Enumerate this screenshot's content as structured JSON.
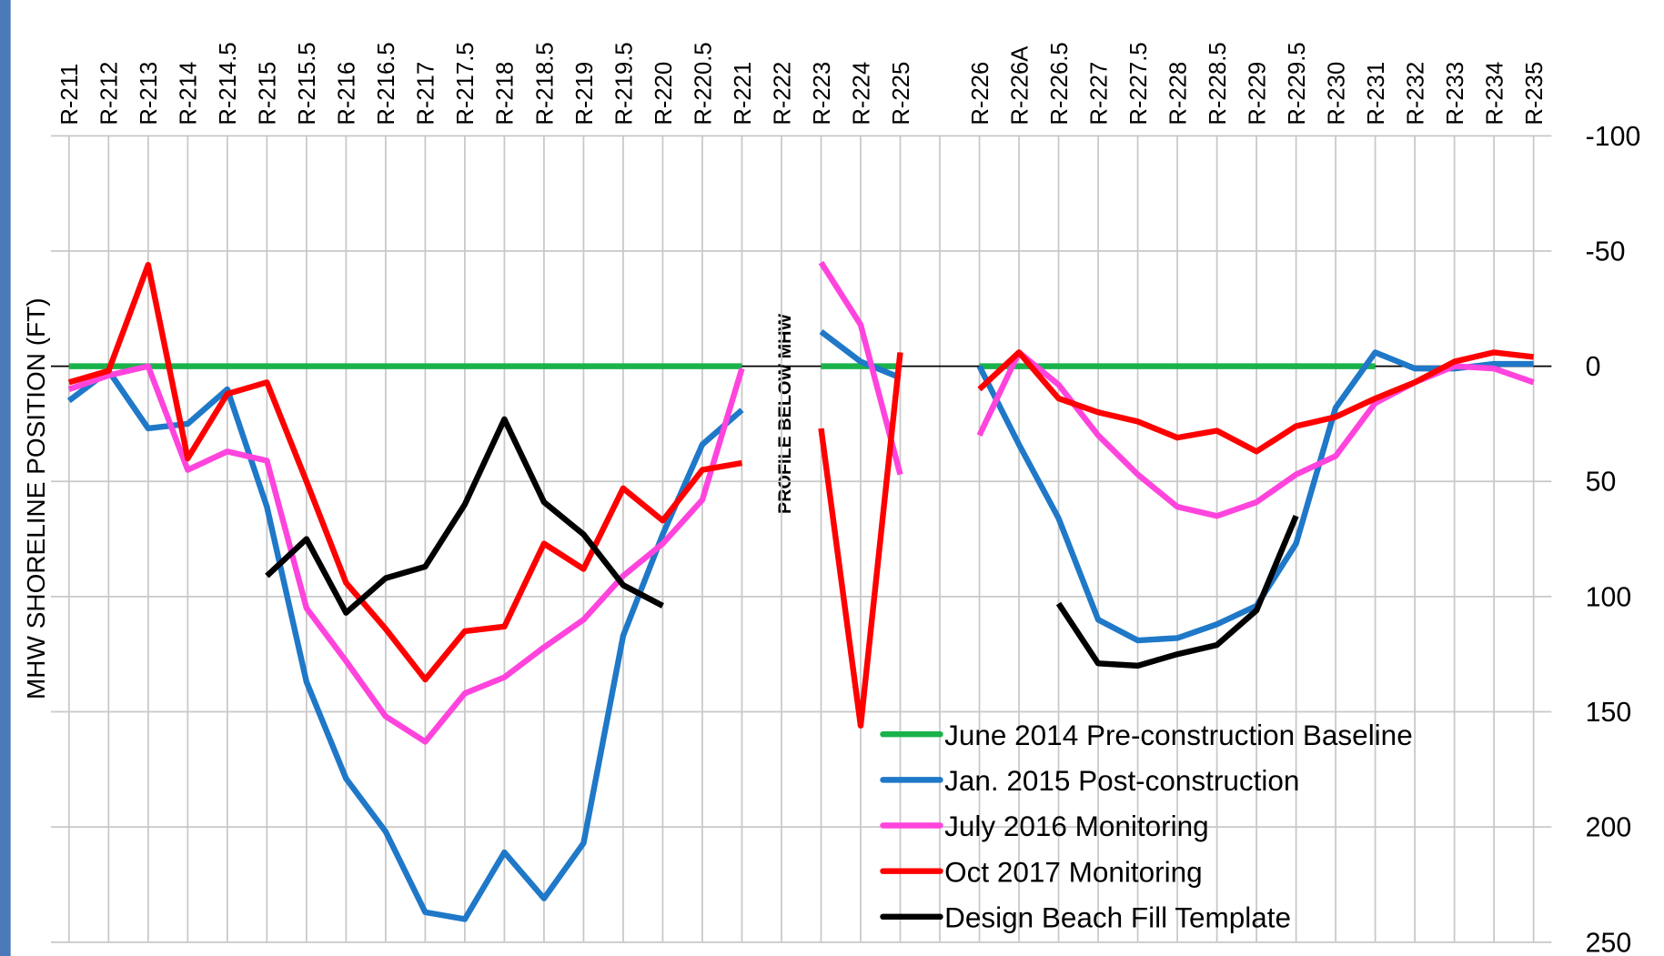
{
  "chart_data": {
    "type": "line",
    "y_label": "MHW SHORELINE POSITION (FT)",
    "annotation": "PROFILE BELOW MHW",
    "categories": [
      "R-211",
      "R-212",
      "R-213",
      "R-214",
      "R-214.5",
      "R-215",
      "R-215.5",
      "R-216",
      "R-216.5",
      "R-217",
      "R-217.5",
      "R-218",
      "R-218.5",
      "R-219",
      "R-219.5",
      "R-220",
      "R-220.5",
      "R-221",
      "R-222",
      "R-223",
      "R-224",
      "R-225",
      null,
      "R-226",
      "R-226A",
      "R-226.5",
      "R-227",
      "R-227.5",
      "R-228",
      "R-228.5",
      "R-229",
      "R-229.5",
      "R-230",
      "R-231",
      "R-232",
      "R-233",
      "R-234",
      "R-235"
    ],
    "series": [
      {
        "name": "June 2014 Pre-construction Baseline",
        "color": "#1ab24b",
        "values": [
          0,
          0,
          0,
          0,
          0,
          0,
          0,
          0,
          0,
          0,
          0,
          0,
          0,
          0,
          0,
          0,
          0,
          0,
          null,
          0,
          0,
          0,
          null,
          0,
          0,
          0,
          0,
          0,
          0,
          0,
          0,
          0,
          0,
          0,
          null,
          null,
          null,
          null
        ]
      },
      {
        "name": "Jan. 2015 Post-construction",
        "color": "#1f78c8",
        "values": [
          15,
          2,
          27,
          25,
          10,
          61,
          137,
          179,
          202,
          237,
          240,
          211,
          231,
          207,
          117,
          73,
          34,
          19,
          null,
          -15,
          -2,
          5,
          null,
          0,
          34,
          66,
          110,
          119,
          118,
          112,
          104,
          77,
          18,
          -6,
          1,
          1,
          -1,
          -1
        ]
      },
      {
        "name": "July 2016 Monitoring",
        "color": "#ff44dd",
        "values": [
          10,
          4,
          0,
          45,
          37,
          41,
          105,
          128,
          152,
          163,
          142,
          135,
          122,
          110,
          91,
          77,
          58,
          1,
          null,
          -45,
          -18,
          47,
          null,
          30,
          -6,
          8,
          30,
          47,
          61,
          65,
          59,
          47,
          39,
          16,
          7,
          0,
          1,
          7
        ]
      },
      {
        "name": "Oct  2017 Monitoring",
        "color": "#ff0000",
        "values": [
          7,
          2,
          -44,
          40,
          12,
          7,
          50,
          94,
          114,
          136,
          115,
          113,
          77,
          88,
          53,
          67,
          45,
          42,
          null,
          27,
          156,
          -6,
          null,
          10,
          -6,
          14,
          20,
          24,
          31,
          28,
          37,
          26,
          22,
          14,
          7,
          -2,
          -6,
          -4
        ]
      },
      {
        "name": "Design Beach Fill Template",
        "color": "#000000",
        "values": [
          null,
          null,
          null,
          null,
          null,
          91,
          75,
          107,
          92,
          87,
          60,
          23,
          59,
          73,
          95,
          104,
          null,
          null,
          null,
          null,
          null,
          null,
          null,
          null,
          null,
          103,
          129,
          130,
          125,
          121,
          106,
          65,
          null,
          null,
          null,
          null,
          null,
          null
        ]
      }
    ],
    "ylim": [
      -100,
      250
    ],
    "yticks": [
      -100,
      -50,
      0,
      50,
      100,
      150,
      200,
      250
    ],
    "y_inverted": true,
    "y_axis_side": "right",
    "grid": true,
    "legend_position": "lower right"
  }
}
